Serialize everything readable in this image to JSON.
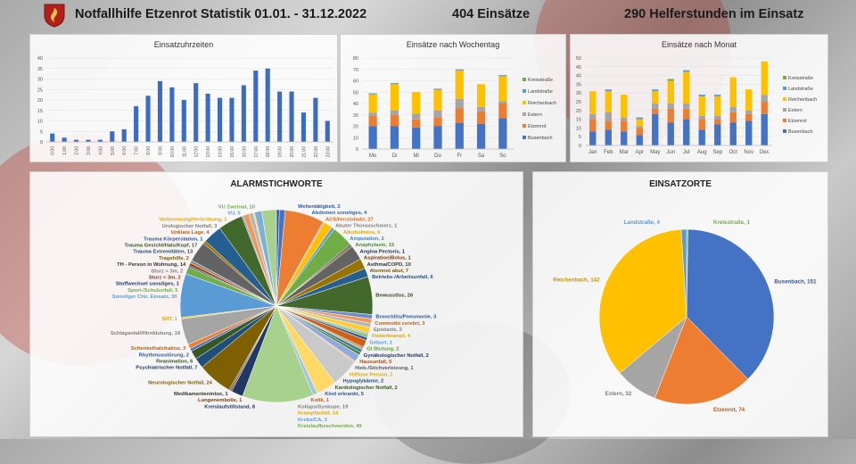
{
  "header": {
    "title": "Notfallhilfe Etzenrot Statistik 01.01. - 31.12.2022",
    "einsaetze": "404 Einsätze",
    "helferstunden": "290 Helferstunden im Einsatz"
  },
  "chart_data": [
    {
      "type": "bar",
      "title": "Einsatzuhrzeiten",
      "categories": [
        "0:00",
        "1:00",
        "2:00",
        "3:00",
        "4:00",
        "5:00",
        "6:00",
        "7:00",
        "8:00",
        "9:00",
        "10:00",
        "11:00",
        "12:00",
        "13:00",
        "14:00",
        "15:00",
        "16:00",
        "17:00",
        "18:00",
        "19:00",
        "20:00",
        "21:00",
        "22:00",
        "23:00"
      ],
      "values": [
        4,
        2,
        1,
        1,
        1,
        5,
        6,
        17,
        22,
        29,
        26,
        20,
        28,
        23,
        21,
        21,
        27,
        34,
        35,
        24,
        24,
        14,
        21,
        10
      ],
      "ylim": [
        0,
        40
      ],
      "yticks": [
        0,
        5,
        10,
        15,
        20,
        25,
        30,
        35,
        40
      ],
      "color": "#3b6cc4"
    },
    {
      "type": "bar",
      "stacked": true,
      "title": "Einsätze nach Wochentag",
      "categories": [
        "Mo",
        "Di",
        "Mi",
        "Do",
        "Fr",
        "Sa",
        "So"
      ],
      "ylim": [
        0,
        80
      ],
      "yticks": [
        0,
        10,
        20,
        30,
        40,
        50,
        60,
        70,
        80
      ],
      "series": [
        {
          "name": "Busenbach",
          "values": [
            20,
            20,
            19,
            20,
            23,
            22,
            27
          ],
          "color": "#4472c4"
        },
        {
          "name": "Etzenrot",
          "values": [
            9,
            10,
            7,
            8,
            13,
            11,
            13
          ],
          "color": "#ed7d31"
        },
        {
          "name": "Extern",
          "values": [
            3,
            4,
            5,
            6,
            8,
            4,
            2
          ],
          "color": "#a5a5a5"
        },
        {
          "name": "Reichenbach",
          "values": [
            16,
            23,
            19,
            18,
            25,
            20,
            22
          ],
          "color": "#ffc000"
        },
        {
          "name": "Landstraße",
          "values": [
            1,
            1,
            0,
            1,
            1,
            0,
            1
          ],
          "color": "#5b9bd5"
        },
        {
          "name": "Kreisstraße",
          "values": [
            0,
            0,
            0,
            0,
            0,
            0,
            0
          ],
          "color": "#70ad47"
        }
      ]
    },
    {
      "type": "bar",
      "stacked": true,
      "title": "Einsätze nach Monat",
      "categories": [
        "Jan",
        "Feb",
        "Mar",
        "Apr",
        "May",
        "Jun",
        "Jul",
        "Aug",
        "Sep",
        "Oct",
        "Nov",
        "Dec"
      ],
      "ylim": [
        0,
        50
      ],
      "yticks": [
        0,
        5,
        10,
        15,
        20,
        25,
        30,
        35,
        40,
        45,
        50
      ],
      "series": [
        {
          "name": "Busenbach",
          "values": [
            8,
            9,
            8,
            6,
            18,
            13,
            15,
            9,
            12,
            13,
            14,
            18
          ],
          "color": "#4472c4"
        },
        {
          "name": "Etzenrot",
          "values": [
            7,
            5,
            6,
            4,
            3,
            8,
            6,
            6,
            3,
            6,
            4,
            7
          ],
          "color": "#ed7d31"
        },
        {
          "name": "Extern",
          "values": [
            3,
            5,
            2,
            1,
            3,
            3,
            3,
            2,
            2,
            3,
            2,
            4
          ],
          "color": "#a5a5a5"
        },
        {
          "name": "Reichenbach",
          "values": [
            13,
            12,
            13,
            4,
            7,
            13,
            18,
            11,
            11,
            17,
            12,
            19
          ],
          "color": "#ffc000"
        },
        {
          "name": "Landstraße",
          "values": [
            0,
            1,
            0,
            1,
            1,
            0,
            1,
            1,
            1,
            0,
            0,
            0
          ],
          "color": "#5b9bd5"
        },
        {
          "name": "Kreisstraße",
          "values": [
            0,
            0,
            0,
            0,
            0,
            1,
            0,
            0,
            0,
            0,
            0,
            0
          ],
          "color": "#70ad47"
        }
      ],
      "legend_order": [
        "Kreisstraße",
        "Landstraße",
        "Reichenbach",
        "Extern",
        "Etzenrot",
        "Busenbach"
      ]
    },
    {
      "type": "pie",
      "title": "ALARMSTICHWORTE",
      "slices": [
        {
          "label": "Wehentätigkeit, 2",
          "value": 2,
          "color": "#2f5597",
          "tcolor": "#2f5597"
        },
        {
          "label": "Abdomen sonstiges, 4",
          "value": 4,
          "color": "#4472c4",
          "tcolor": "#2e5fa8"
        },
        {
          "label": "ACS/Herzinfarkt, 27",
          "value": 27,
          "color": "#ed7d31",
          "tcolor": "#e06a1a"
        },
        {
          "label": "Akuter Thoraxschmerz, 1",
          "value": 1,
          "color": "#a5a5a5",
          "tcolor": "#7f7f7f"
        },
        {
          "label": "Alkoholintox, 6",
          "value": 6,
          "color": "#ffc000",
          "tcolor": "#e0a800"
        },
        {
          "label": "Amputation, 2",
          "value": 2,
          "color": "#5b9bd5",
          "tcolor": "#3d85c6"
        },
        {
          "label": "Anaphylaxie, 15",
          "value": 15,
          "color": "#70ad47",
          "tcolor": "#4e8a2e"
        },
        {
          "label": "Angina Pectoris, 1",
          "value": 1,
          "color": "#264478",
          "tcolor": "#1f2d47"
        },
        {
          "label": "Aspiration/Bolus, 1",
          "value": 1,
          "color": "#9e480e",
          "tcolor": "#7a3608"
        },
        {
          "label": "Asthma/COPD, 10",
          "value": 10,
          "color": "#636363",
          "tcolor": "#333333"
        },
        {
          "label": "Atemnot akut, 7",
          "value": 7,
          "color": "#997300",
          "tcolor": "#7a5c00"
        },
        {
          "label": "Betriebs-/Arbeitsunfall, 6",
          "value": 6,
          "color": "#255e91",
          "tcolor": "#1f4e79"
        },
        {
          "label": "Bewusstlos, 26",
          "value": 26,
          "color": "#43682b",
          "tcolor": "#2f4a1e"
        },
        {
          "label": "Bronchitis/Pneumonie, 3",
          "value": 3,
          "color": "#698ed0",
          "tcolor": "#2f5597"
        },
        {
          "label": "Commotio cerebri, 3",
          "value": 3,
          "color": "#f1975a",
          "tcolor": "#c55a11"
        },
        {
          "label": "Epistaxis, 3",
          "value": 3,
          "color": "#b7b7b7",
          "tcolor": "#7f7f7f"
        },
        {
          "label": "Fieberkrampf, 4",
          "value": 4,
          "color": "#ffcd33",
          "tcolor": "#e0a800"
        },
        {
          "label": "Geburt, 1",
          "value": 1,
          "color": "#7cafdd",
          "tcolor": "#5b9bd5"
        },
        {
          "label": "GI Blutung, 2",
          "value": 2,
          "color": "#8cc168",
          "tcolor": "#5d9c3a"
        },
        {
          "label": "Gynäkologischer Notfall, 2",
          "value": 2,
          "color": "#335aa1",
          "tcolor": "#1f3864"
        },
        {
          "label": "Hausunfall, 5",
          "value": 5,
          "color": "#d26012",
          "tcolor": "#b04e0a"
        },
        {
          "label": "Hieb-/Stichverletzung, 1",
          "value": 1,
          "color": "#848484",
          "tcolor": "#595959"
        },
        {
          "label": "Hilflose Person, 1",
          "value": 1,
          "color": "#cc9a00",
          "tcolor": "#e0a800"
        },
        {
          "label": "Hypoglykämie, 2",
          "value": 2,
          "color": "#2e75b6",
          "tcolor": "#1f4e79"
        },
        {
          "label": "Kardiologischer Notfall, 2",
          "value": 2,
          "color": "#548235",
          "tcolor": "#375623"
        },
        {
          "label": "Kind erkrankt, 5",
          "value": 5,
          "color": "#8faadc",
          "tcolor": "#2f5597"
        },
        {
          "label": "Kolik, 1",
          "value": 1,
          "color": "#f4b183",
          "tcolor": "#c55a11"
        },
        {
          "label": "Kollaps/Synkope, 19",
          "value": 19,
          "color": "#c9c9c9",
          "tcolor": "#7f7f7f"
        },
        {
          "label": "Krampfanfall, 14",
          "value": 14,
          "color": "#ffd966",
          "tcolor": "#e0a800"
        },
        {
          "label": "Krebs/CA, 3",
          "value": 3,
          "color": "#9dc3e6",
          "tcolor": "#5b9bd5"
        },
        {
          "label": "Kreislaufbeschwerden, 49",
          "value": 49,
          "color": "#a9d18e",
          "tcolor": "#70ad47"
        },
        {
          "label": "Kreislaufstillstand, 8",
          "value": 8,
          "color": "#1f3864",
          "tcolor": "#1f3864"
        },
        {
          "label": "Lungenembolie, 1",
          "value": 1,
          "color": "#843c0c",
          "tcolor": "#843c0c"
        },
        {
          "label": "Medikamentenintox, 1",
          "value": 1,
          "color": "#525252",
          "tcolor": "#333333"
        },
        {
          "label": "Neurologischer Notfall, 24",
          "value": 24,
          "color": "#7f6000",
          "tcolor": "#7f6000"
        },
        {
          "label": "Psychiatrischer Notfall, 7",
          "value": 7,
          "color": "#1f4e79",
          "tcolor": "#1f3864"
        },
        {
          "label": "Reanimation, 6",
          "value": 6,
          "color": "#385723",
          "tcolor": "#375623"
        },
        {
          "label": "Rhythmusstörung, 2",
          "value": 2,
          "color": "#4472c4",
          "tcolor": "#2f5597"
        },
        {
          "label": "Schenkelhalsfraktur, 3",
          "value": 3,
          "color": "#ed7d31",
          "tcolor": "#c55a11"
        },
        {
          "label": "Schlaganfall/Hirnblutung, 18",
          "value": 18,
          "color": "#a5a5a5",
          "tcolor": "#7f7f7f"
        },
        {
          "label": "SHT, 1",
          "value": 1,
          "color": "#ffc000",
          "tcolor": "#e0a800"
        },
        {
          "label": "Sonstiger Chir. Einsatz, 30",
          "value": 30,
          "color": "#5b9bd5",
          "tcolor": "#5b9bd5"
        },
        {
          "label": "Sport-/Schulunfall, 5",
          "value": 5,
          "color": "#70ad47",
          "tcolor": "#70ad47"
        },
        {
          "label": "Stoffwechsel sonstiges, 1",
          "value": 1,
          "color": "#264478",
          "tcolor": "#1f3864"
        },
        {
          "label": "Sturz < 3m, 2",
          "value": 2,
          "color": "#9e480e",
          "tcolor": "#843c0c"
        },
        {
          "label": "Sturz > 3m, 2",
          "value": 2,
          "color": "#8a8a8a",
          "tcolor": "#7f7f7f"
        },
        {
          "label": "TH - Person in Wohnung, 14",
          "value": 14,
          "color": "#636363",
          "tcolor": "#333333"
        },
        {
          "label": "Tragehilfe, 2",
          "value": 2,
          "color": "#997300",
          "tcolor": "#7f6000"
        },
        {
          "label": "Trauma Extremitäten, 13",
          "value": 13,
          "color": "#255e91",
          "tcolor": "#1f4e79"
        },
        {
          "label": "Trauma Gesicht/Hals/Kopf, 17",
          "value": 17,
          "color": "#43682b",
          "tcolor": "#375623"
        },
        {
          "label": "Trauma Körperstamm, 1",
          "value": 1,
          "color": "#698ed0",
          "tcolor": "#2f5597"
        },
        {
          "label": "Unklare Lage, 4",
          "value": 4,
          "color": "#f1975a",
          "tcolor": "#c55a11"
        },
        {
          "label": "Urologischer Notfall, 3",
          "value": 3,
          "color": "#b7b7b7",
          "tcolor": "#7f7f7f"
        },
        {
          "label": "Verbrennung/Verbrühung, 1",
          "value": 1,
          "color": "#ffcd33",
          "tcolor": "#e0a800"
        },
        {
          "label": "VU, 5",
          "value": 5,
          "color": "#7cafdd",
          "tcolor": "#5b9bd5"
        },
        {
          "label": "VU Zweirad, 10",
          "value": 10,
          "color": "#a9d18e",
          "tcolor": "#70ad47"
        }
      ]
    },
    {
      "type": "pie",
      "title": "EINSATZORTE",
      "slices": [
        {
          "label": "Kreisstraße, 1",
          "value": 1,
          "color": "#70ad47",
          "tcolor": "#70ad47"
        },
        {
          "label": "Busenbach, 151",
          "value": 151,
          "color": "#4472c4",
          "tcolor": "#2f5597"
        },
        {
          "label": "Etzenrot, 74",
          "value": 74,
          "color": "#ed7d31",
          "tcolor": "#c55a11"
        },
        {
          "label": "Extern, 32",
          "value": 32,
          "color": "#a5a5a5",
          "tcolor": "#7f7f7f"
        },
        {
          "label": "Reichenbach, 142",
          "value": 142,
          "color": "#ffc000",
          "tcolor": "#c89600"
        },
        {
          "label": "Landstraße, 4",
          "value": 4,
          "color": "#5b9bd5",
          "tcolor": "#5b9bd5"
        }
      ]
    }
  ]
}
